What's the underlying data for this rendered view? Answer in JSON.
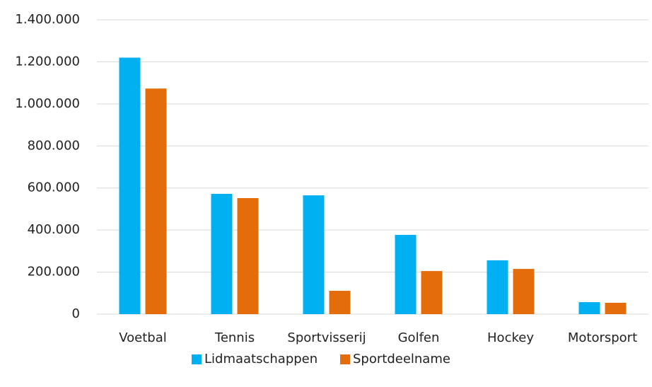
{
  "chart_data": {
    "type": "bar",
    "categories": [
      "Voetbal",
      "Tennis",
      "Sportvisserij",
      "Golfen",
      "Hockey",
      "Motorsport"
    ],
    "series": [
      {
        "name": "Lidmaatschappen",
        "color": "#00b0f0",
        "values": [
          1220000,
          572000,
          565000,
          377000,
          256000,
          57000
        ]
      },
      {
        "name": "Sportdeelname",
        "color": "#e46c0a",
        "values": [
          1073000,
          552000,
          111000,
          205000,
          215000,
          54000
        ]
      }
    ],
    "ylim": [
      0,
      1400000
    ],
    "yticks": [
      0,
      {
        "value": 200000,
        "label": "200.000"
      },
      {
        "value": 400000,
        "label": "400.000"
      },
      {
        "value": 600000,
        "label": "600.000"
      },
      {
        "value": 800000,
        "label": "800.000"
      },
      {
        "value": 1000000,
        "label": "1.000.000"
      },
      {
        "value": 1200000,
        "label": "1.200.000"
      },
      {
        "value": 1400000,
        "label": "1.400.000"
      }
    ],
    "grid": true,
    "legend": "bottom"
  }
}
